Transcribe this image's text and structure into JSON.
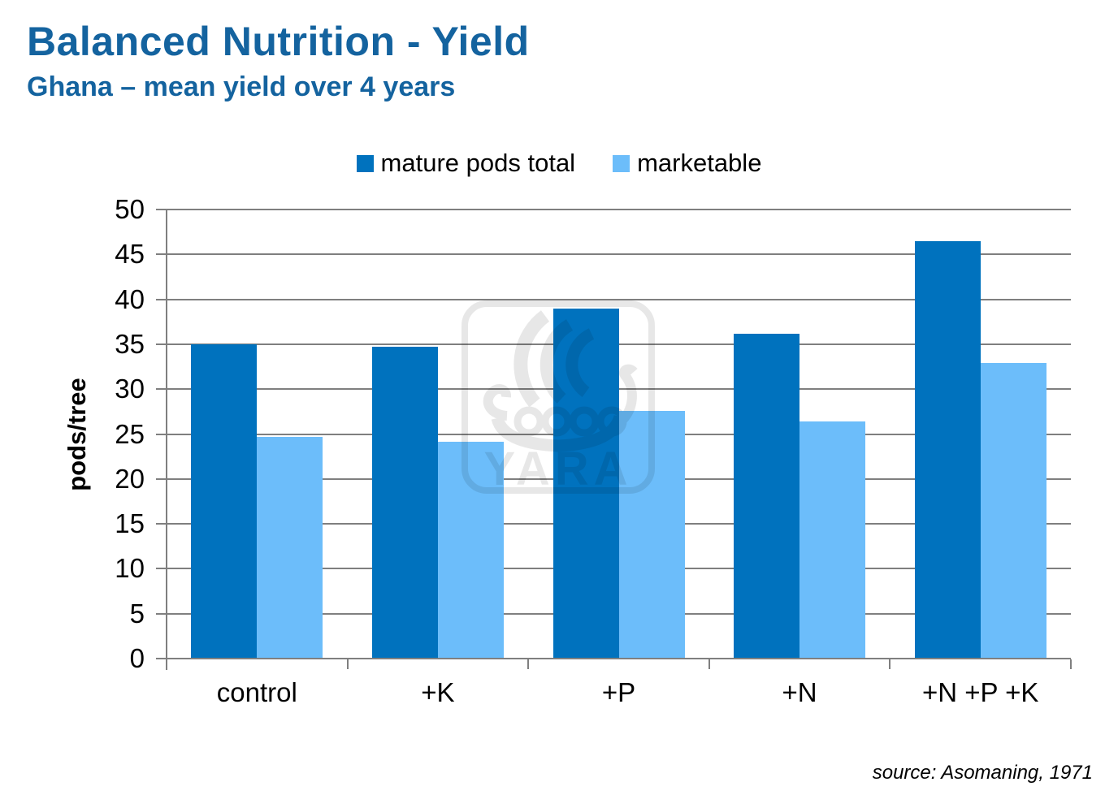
{
  "page": {
    "title": "Balanced Nutrition - Yield",
    "subtitle": "Ghana – mean yield over 4 years",
    "source": "source: Asomaning, 1971"
  },
  "watermark": {
    "text": "YARA",
    "icon": "yara-viking-ship-logo"
  },
  "colors": {
    "title_blue": "#14639F",
    "series_mature_pods_total": "#0072BE",
    "series_marketable": "#6CBDFA",
    "grid_gray": "#7F7F7F",
    "text_black": "#000000"
  },
  "chart_data": {
    "type": "bar",
    "title": "",
    "xlabel": "",
    "ylabel": "pods/tree",
    "ylim": [
      0,
      50
    ],
    "ytick_step": 5,
    "grid": true,
    "legend_position": "top-center",
    "categories": [
      "control",
      "+K",
      "+P",
      "+N",
      "+N +P +K"
    ],
    "series": [
      {
        "name": "mature pods total",
        "color": "#0072BE",
        "values": [
          35.0,
          34.7,
          39.0,
          36.2,
          46.5
        ]
      },
      {
        "name": "marketable",
        "color": "#6CBDFA",
        "values": [
          24.7,
          24.1,
          27.6,
          26.4,
          32.9
        ]
      }
    ]
  }
}
